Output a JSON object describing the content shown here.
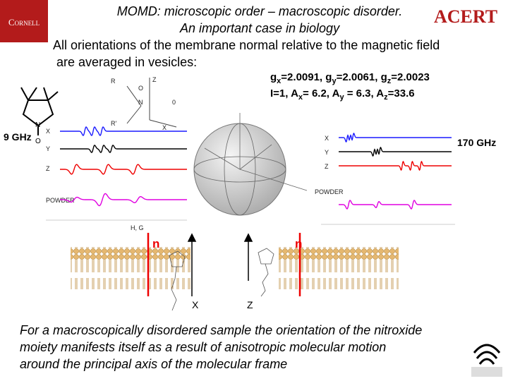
{
  "logo_left": "Cornell",
  "logo_right": "ACERT",
  "title": [
    "MOMD: microscopic order – macroscopic disorder.",
    "An important case in biology"
  ],
  "subtitle": [
    "All orientations of the membrane normal relative to the magnetic field",
    "are averaged in vesicles:"
  ],
  "params": {
    "g": [
      {
        "sym": "g",
        "sub": "x",
        "val": "=2.0091, "
      },
      {
        "sym": "g",
        "sub": "y",
        "val": "=2.0061, "
      },
      {
        "sym": "g",
        "sub": "z",
        "val": "=2.0023"
      }
    ],
    "a_prefix": "I=1, ",
    "a": [
      {
        "sym": "A",
        "sub": "x",
        "val": "= 6.2, "
      },
      {
        "sym": "A",
        "sub": "y",
        "val": " = 6.3, "
      },
      {
        "sym": "A",
        "sub": "z",
        "val": "=33.6"
      }
    ]
  },
  "left_spectra": {
    "freq": "9 GHz",
    "labels": [
      "X",
      "Y",
      "Z",
      "POWDER"
    ],
    "axis_label": "H, G"
  },
  "right_spectra": {
    "freq": "170 GHz",
    "labels": [
      "X",
      "Y",
      "Z",
      "POWDER"
    ]
  },
  "molecule": {
    "labels": [
      "R",
      "O",
      "N",
      "Z",
      "R'",
      "X",
      "0"
    ]
  },
  "membrane": {
    "normal_left": "n",
    "normal_right": "n",
    "axis_left": "X",
    "axis_right": "Z"
  },
  "paragraph": [
    "For a macroscopically disordered sample the orientation of the nitroxide",
    "moiety manifests itself as a result of anisotropic molecular motion",
    "around the principal axis of the molecular frame"
  ]
}
